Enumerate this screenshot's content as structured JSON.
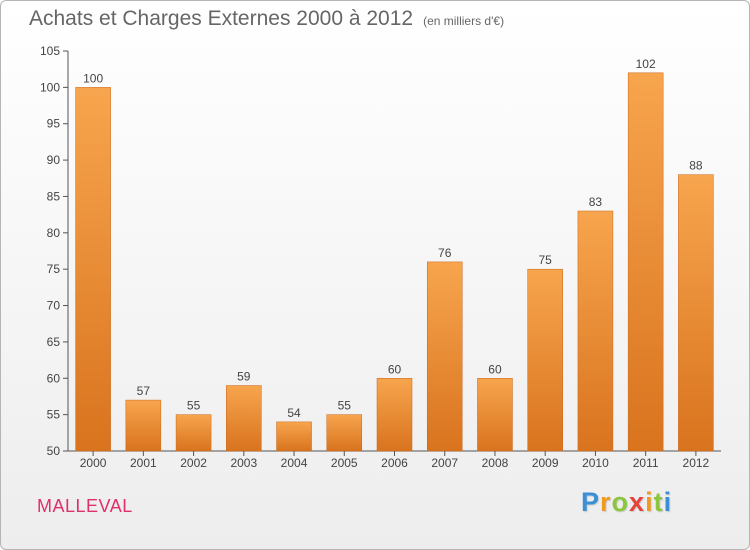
{
  "header": {
    "title": "Achats et Charges Externes 2000 à 2012",
    "unit": "(en milliers d'€)"
  },
  "footer": {
    "commune": "MALLEVAL",
    "brand": "Proxiti"
  },
  "colors": {
    "bar_light": "#f7a54e",
    "bar_dark": "#d9731e",
    "axis": "#555555",
    "text": "#444444"
  },
  "chart_data": {
    "type": "bar",
    "categories": [
      "2000",
      "2001",
      "2002",
      "2003",
      "2004",
      "2005",
      "2006",
      "2007",
      "2008",
      "2009",
      "2010",
      "2011",
      "2012"
    ],
    "values": [
      100,
      57,
      55,
      59,
      54,
      55,
      60,
      76,
      60,
      75,
      83,
      102,
      88
    ],
    "ylim": [
      50,
      105
    ],
    "yticks": [
      50,
      55,
      60,
      65,
      70,
      75,
      80,
      85,
      90,
      95,
      100,
      105
    ],
    "grid": false
  }
}
